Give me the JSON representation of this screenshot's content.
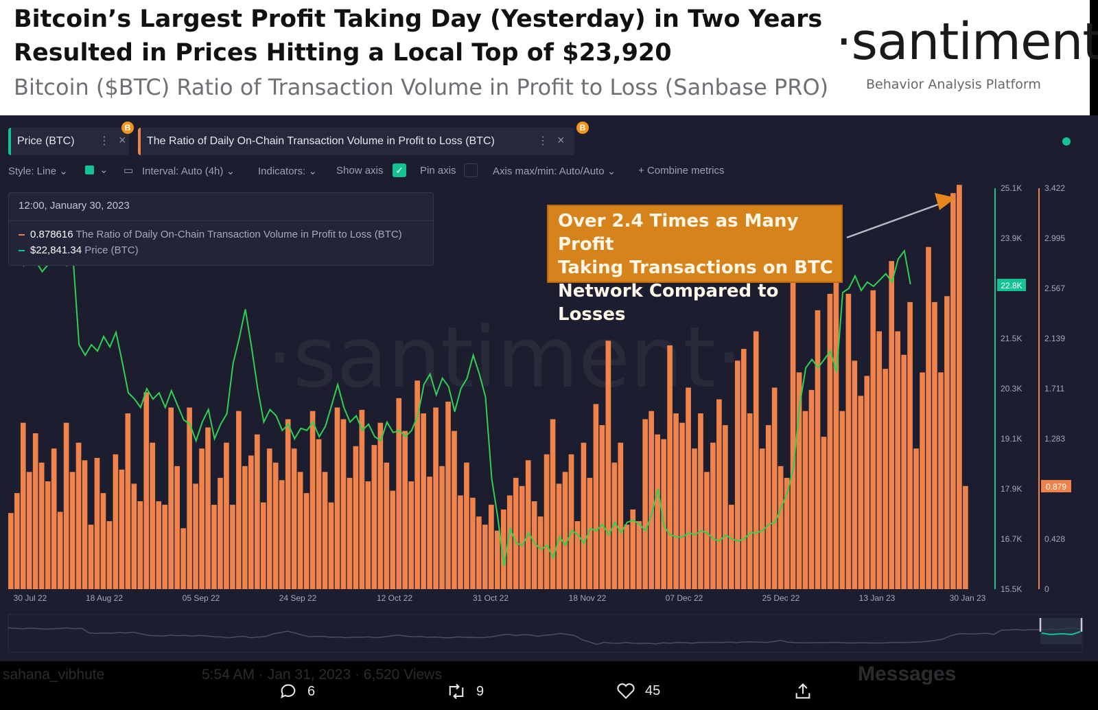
{
  "header": {
    "title": "Bitcoin’s Largest Profit Taking Day (Yesterday) in Two Years Resulted in Prices Hitting a Local Top of $23,920",
    "subtitle": "Bitcoin ($BTC) Ratio of Transaction Volume in Profit to Loss (Sanbase PRO)",
    "logo": "·santiment·",
    "logo_tagline": "Behavior Analysis Platform"
  },
  "tabs": [
    {
      "label": "Price (BTC)",
      "color": "#14c393",
      "badge": "B"
    },
    {
      "label": "The Ratio of Daily On-Chain Transaction Volume in Profit to Loss (BTC)",
      "color": "#f0834a",
      "badge": "B"
    }
  ],
  "toolbar": {
    "style": "Style: Line",
    "interval": "Interval: Auto (4h)",
    "indicators": "Indicators:",
    "show_axis": "Show axis",
    "pin_axis": "Pin axis",
    "axis_minmax": "Axis max/min: Auto/Auto",
    "combine": "Combine metrics"
  },
  "tooltip": {
    "date": "12:00, January 30, 2023",
    "rows": [
      {
        "value": "0.878616",
        "label": "The Ratio of Daily On-Chain Transaction Volume in Profit to Loss (BTC)",
        "color": "#f0834a"
      },
      {
        "value": "$22,841.34",
        "label": "Price (BTC)",
        "color": "#14c393"
      }
    ]
  },
  "annotation": {
    "lines": [
      "Over 2.4 Times as Many Profit",
      "Taking Transactions on BTC",
      "Network Compared to Losses"
    ]
  },
  "watermark": "·santiment·",
  "chart_data": {
    "type": "bar",
    "x_ticks": [
      "30 Jul 22",
      "18 Aug 22",
      "05 Sep 22",
      "24 Sep 22",
      "12 Oct 22",
      "31 Oct 22",
      "18 Nov 22",
      "07 Dec 22",
      "25 Dec 22",
      "13 Jan 23",
      "30 Jan 23"
    ],
    "price_axis_ticks": [
      "25.1K",
      "23.9K",
      "22.8K",
      "21.5K",
      "20.3K",
      "19.1K",
      "17.9K",
      "16.7K",
      "15.5K"
    ],
    "ratio_axis_ticks": [
      "3.422",
      "2.995",
      "2.567",
      "2.139",
      "1.711",
      "1.283",
      "0.879",
      "0.428",
      "0"
    ],
    "price_current_label": "22.8K",
    "ratio_current_label": "0.879",
    "price_range": [
      15500,
      25100
    ],
    "ratio_range": [
      0,
      3.422
    ],
    "series": [
      {
        "name": "The Ratio of Daily On-Chain Transaction Volume in Profit to Loss (BTC)",
        "type": "bar",
        "color": "#f0834a",
        "values": [
          0.65,
          0.82,
          1.42,
          1.0,
          1.33,
          1.08,
          0.92,
          1.2,
          0.66,
          1.42,
          1.0,
          1.25,
          1.1,
          0.55,
          1.12,
          0.82,
          0.58,
          1.15,
          1.02,
          1.5,
          0.9,
          0.75,
          1.68,
          1.25,
          0.75,
          0.72,
          1.55,
          1.05,
          0.52,
          1.55,
          0.9,
          1.2,
          1.38,
          0.72,
          0.95,
          1.25,
          0.72,
          1.52,
          1.05,
          1.14,
          1.32,
          0.74,
          1.2,
          1.08,
          0.93,
          1.45,
          1.2,
          1.0,
          0.82,
          1.52,
          1.28,
          1.0,
          0.74,
          1.55,
          1.45,
          0.95,
          1.22,
          1.53,
          0.92,
          1.23,
          1.42,
          1.08,
          0.84,
          1.63,
          1.35,
          0.92,
          1.78,
          1.5,
          0.96,
          1.55,
          1.05,
          1.6,
          1.35,
          0.8,
          1.08,
          0.78,
          0.62,
          0.55,
          0.72,
          0.5,
          0.68,
          0.8,
          0.95,
          0.88,
          1.1,
          0.75,
          0.62,
          1.15,
          1.45,
          0.9,
          1.0,
          1.15,
          0.58,
          1.25,
          0.95,
          1.58,
          1.4,
          2.12,
          1.08,
          1.25,
          0.55,
          0.68,
          0.58,
          1.45,
          1.52,
          1.32,
          1.28,
          2.08,
          1.5,
          1.42,
          1.72,
          1.2,
          1.5,
          1.0,
          1.25,
          1.62,
          1.4,
          0.72,
          1.95,
          2.05,
          1.5,
          2.2,
          1.2,
          1.4,
          1.72,
          1.05,
          0.95,
          3.1,
          1.85,
          1.52,
          1.7,
          2.38,
          1.3,
          2.52,
          2.95,
          1.52,
          2.52,
          1.95,
          1.65,
          1.82,
          2.55,
          2.2,
          1.88,
          2.8,
          2.2,
          2.0,
          2.45,
          1.2,
          1.85,
          2.92,
          2.45,
          1.85,
          2.5,
          3.38,
          3.45,
          0.88
        ]
      },
      {
        "name": "Price (BTC)",
        "type": "line",
        "color": "#14c393",
        "points": [
          [
            0,
            23650
          ],
          [
            2,
            23250
          ],
          [
            3,
            23600
          ],
          [
            5,
            23100
          ],
          [
            7,
            23450
          ],
          [
            8,
            23700
          ],
          [
            9,
            23250
          ],
          [
            10,
            23500
          ],
          [
            11,
            21350
          ],
          [
            12,
            21100
          ],
          [
            13,
            21350
          ],
          [
            14,
            21200
          ],
          [
            15,
            21550
          ],
          [
            16,
            21300
          ],
          [
            17,
            21650
          ],
          [
            18,
            20950
          ],
          [
            19,
            20200
          ],
          [
            20,
            20050
          ],
          [
            21,
            19850
          ],
          [
            22,
            20300
          ],
          [
            23,
            20050
          ],
          [
            24,
            20200
          ],
          [
            25,
            19850
          ],
          [
            26,
            20250
          ],
          [
            27,
            19900
          ],
          [
            28,
            19550
          ],
          [
            29,
            19450
          ],
          [
            30,
            19050
          ],
          [
            31,
            19500
          ],
          [
            32,
            19800
          ],
          [
            33,
            19100
          ],
          [
            34,
            19450
          ],
          [
            35,
            19700
          ],
          [
            36,
            20900
          ],
          [
            37,
            21500
          ],
          [
            38,
            22200
          ],
          [
            39,
            21300
          ],
          [
            40,
            20300
          ],
          [
            41,
            19500
          ],
          [
            42,
            19800
          ],
          [
            43,
            19650
          ],
          [
            44,
            19300
          ],
          [
            45,
            19450
          ],
          [
            46,
            19100
          ],
          [
            47,
            19350
          ],
          [
            48,
            19300
          ],
          [
            49,
            19500
          ],
          [
            50,
            19150
          ],
          [
            51,
            19400
          ],
          [
            52,
            19900
          ],
          [
            53,
            20400
          ],
          [
            54,
            19850
          ],
          [
            55,
            19500
          ],
          [
            56,
            19650
          ],
          [
            57,
            19300
          ],
          [
            58,
            19450
          ],
          [
            59,
            19150
          ],
          [
            60,
            19050
          ],
          [
            61,
            19500
          ],
          [
            62,
            19250
          ],
          [
            63,
            19300
          ],
          [
            64,
            19150
          ],
          [
            65,
            19300
          ],
          [
            66,
            19650
          ],
          [
            67,
            20400
          ],
          [
            68,
            20650
          ],
          [
            69,
            20150
          ],
          [
            70,
            20550
          ],
          [
            71,
            20350
          ],
          [
            72,
            19750
          ],
          [
            73,
            20300
          ],
          [
            74,
            20550
          ],
          [
            75,
            21100
          ],
          [
            76,
            20650
          ],
          [
            77,
            20100
          ],
          [
            78,
            18150
          ],
          [
            79,
            17200
          ],
          [
            80,
            16050
          ],
          [
            81,
            16950
          ],
          [
            82,
            16600
          ],
          [
            83,
            16550
          ],
          [
            84,
            16850
          ],
          [
            85,
            16600
          ],
          [
            86,
            16450
          ],
          [
            87,
            16550
          ],
          [
            88,
            16250
          ],
          [
            89,
            16750
          ],
          [
            90,
            16550
          ],
          [
            91,
            16900
          ],
          [
            92,
            16800
          ],
          [
            93,
            16600
          ],
          [
            94,
            16950
          ],
          [
            95,
            16900
          ],
          [
            96,
            17050
          ],
          [
            97,
            16800
          ],
          [
            98,
            17100
          ],
          [
            99,
            16850
          ],
          [
            100,
            17100
          ],
          [
            101,
            17150
          ],
          [
            102,
            17050
          ],
          [
            103,
            16900
          ],
          [
            104,
            17300
          ],
          [
            105,
            17900
          ],
          [
            106,
            17000
          ],
          [
            107,
            16800
          ],
          [
            108,
            16750
          ],
          [
            109,
            16750
          ],
          [
            110,
            16850
          ],
          [
            111,
            16800
          ],
          [
            112,
            16900
          ],
          [
            113,
            16850
          ],
          [
            114,
            16700
          ],
          [
            115,
            16650
          ],
          [
            116,
            16800
          ],
          [
            117,
            16700
          ],
          [
            118,
            16650
          ],
          [
            119,
            16700
          ],
          [
            120,
            16850
          ],
          [
            121,
            16850
          ],
          [
            122,
            16900
          ],
          [
            123,
            17050
          ],
          [
            124,
            17100
          ],
          [
            125,
            17450
          ],
          [
            126,
            17800
          ],
          [
            127,
            18400
          ],
          [
            128,
            19900
          ],
          [
            129,
            20800
          ],
          [
            130,
            21000
          ],
          [
            131,
            20800
          ],
          [
            132,
            21000
          ],
          [
            133,
            21200
          ],
          [
            134,
            20700
          ],
          [
            135,
            22600
          ],
          [
            136,
            22700
          ],
          [
            137,
            23000
          ],
          [
            138,
            22650
          ],
          [
            139,
            22850
          ],
          [
            140,
            22750
          ],
          [
            141,
            22900
          ],
          [
            142,
            23050
          ],
          [
            143,
            22850
          ],
          [
            144,
            23400
          ],
          [
            145,
            23600
          ],
          [
            146,
            22800
          ]
        ]
      }
    ]
  },
  "footer": {
    "author": "sahana_vibhute",
    "time": "5:54 AM · Jan 31, 2023 · 6,520 Views",
    "reply_count": "6",
    "retweet_count": "9",
    "like_count": "45",
    "messages": "Messages"
  }
}
